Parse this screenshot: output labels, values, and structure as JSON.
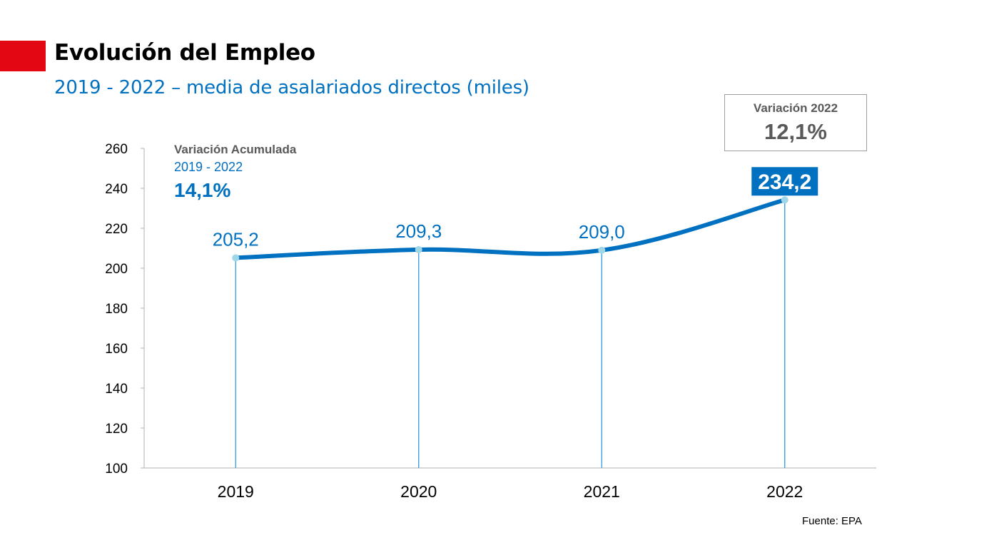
{
  "header": {
    "title": "Evolución del Empleo",
    "subtitle": "2019  - 2022  – media de asalariados directos (miles)"
  },
  "annotations": {
    "cumulative": {
      "label": "Variación Acumulada",
      "period": "2019 - 2022",
      "value": "14,1%"
    },
    "variation_2022": {
      "label": "Variación 2022",
      "value": "12,1%"
    }
  },
  "source": "Fuente: EPA",
  "colors": {
    "accent_red": "#e30613",
    "series_blue": "#0070c0",
    "drop_line_blue": "#2e9be0",
    "marker": "#9fd6e8",
    "annotation_gray": "#595959",
    "axis_gray": "#bfbfbf"
  },
  "chart_data": {
    "type": "line",
    "title": "Evolución del Empleo",
    "subtitle": "2019  - 2022  – media de asalariados directos (miles)",
    "categories": [
      "2019",
      "2020",
      "2021",
      "2022"
    ],
    "values": [
      205.2,
      209.3,
      209.0,
      234.2
    ],
    "data_labels": [
      "205,2",
      "209,3",
      "209,0",
      "234,2"
    ],
    "highlighted_label_index": 3,
    "ylim": [
      100,
      260
    ],
    "yticks": [
      100,
      120,
      140,
      160,
      180,
      200,
      220,
      240,
      260
    ],
    "ytick_labels": [
      "100",
      "120",
      "140",
      "160",
      "180",
      "200",
      "220",
      "240",
      "260"
    ],
    "grid": false,
    "smooth": true,
    "drop_lines": true,
    "xlabel": "",
    "ylabel": ""
  }
}
